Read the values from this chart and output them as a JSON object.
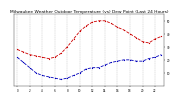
{
  "title": "Milwaukee Weather Outdoor Temperature (vs) Dew Point (Last 24 Hours)",
  "title_fontsize": 3.2,
  "background_color": "#ffffff",
  "temp_color": "#cc0000",
  "dew_color": "#0000bb",
  "x": [
    0,
    1,
    2,
    3,
    4,
    5,
    6,
    7,
    8,
    9,
    10,
    11,
    12,
    13,
    14,
    15,
    16,
    17,
    18,
    19,
    20,
    21,
    22,
    23
  ],
  "temp": [
    28,
    26,
    24,
    23,
    22,
    21,
    22,
    25,
    30,
    36,
    42,
    46,
    49,
    50,
    50,
    48,
    45,
    43,
    40,
    37,
    34,
    33,
    36,
    38
  ],
  "dew": [
    22,
    18,
    14,
    10,
    8,
    7,
    6,
    5,
    6,
    8,
    10,
    13,
    14,
    14,
    16,
    18,
    19,
    20,
    20,
    19,
    19,
    21,
    22,
    24
  ],
  "ylim": [
    0,
    55
  ],
  "yticks": [
    10,
    20,
    30,
    40,
    50
  ],
  "ytick_labels": [
    "10",
    "20",
    "30",
    "40",
    "50"
  ],
  "xticks": [
    0,
    2,
    4,
    6,
    8,
    10,
    12,
    14,
    16,
    18,
    20,
    22
  ],
  "xtick_labels": [
    "0",
    "2",
    "4",
    "6",
    "8",
    "10",
    "12",
    "14",
    "16",
    "18",
    "20",
    "22"
  ],
  "grid_color": "#999999",
  "line_style": "--",
  "linewidth": 0.6,
  "marker": "s",
  "markersize": 0.8,
  "vgrid_positions": [
    0,
    2,
    4,
    6,
    8,
    10,
    12,
    14,
    16,
    18,
    20,
    22
  ]
}
